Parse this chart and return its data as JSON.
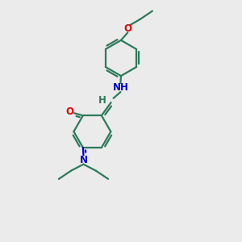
{
  "bg_color": "#ebebeb",
  "bond_color": "#2d7a5a",
  "N_color": "#0000cc",
  "NH_color": "#2d7a5a",
  "H_color": "#2d7a5a",
  "O_color": "#dd0000",
  "line_width": 1.6,
  "font_size": 8.5,
  "fig_size": [
    3.0,
    3.0
  ],
  "dpi": 100,
  "xlim": [
    0,
    10
  ],
  "ylim": [
    0,
    10
  ]
}
